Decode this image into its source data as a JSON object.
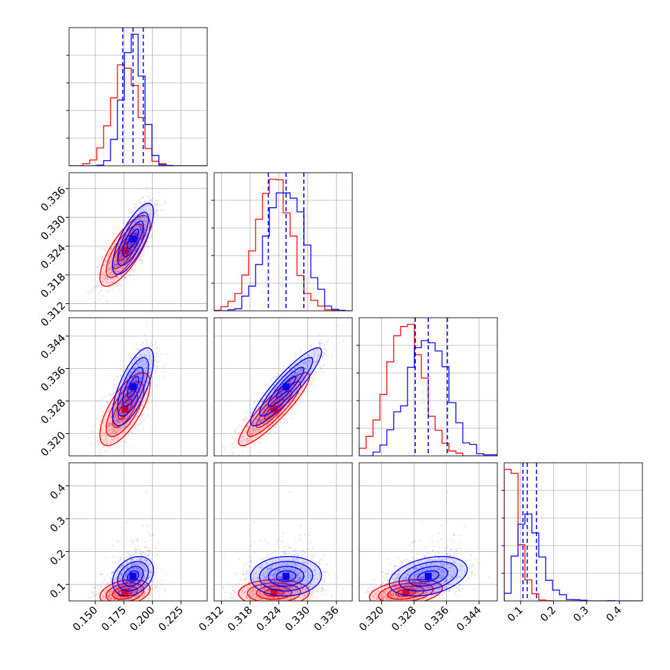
{
  "chart_data": {
    "type": "corner",
    "n_params": 4,
    "colors": {
      "a": "#0000ff",
      "b": "#ff0000",
      "grid": "#b0b0b0"
    },
    "params": [
      {
        "range": [
          0.127,
          0.248
        ],
        "ticks": [
          0.15,
          0.175,
          0.2,
          0.225
        ],
        "tick_labels": [
          "0.150",
          "0.175",
          "0.200",
          "0.225"
        ]
      },
      {
        "range": [
          0.3105,
          0.3393
        ],
        "ticks": [
          0.312,
          0.318,
          0.324,
          0.33,
          0.336
        ],
        "tick_labels": [
          "0.312",
          "0.318",
          "0.324",
          "0.330",
          "0.336"
        ]
      },
      {
        "range": [
          0.3145,
          0.3485
        ],
        "ticks": [
          0.32,
          0.328,
          0.336,
          0.344
        ],
        "tick_labels": [
          "0.320",
          "0.328",
          "0.336",
          "0.344"
        ]
      },
      {
        "range": [
          0.05,
          0.47
        ],
        "ticks": [
          0.1,
          0.2,
          0.3,
          0.4
        ],
        "tick_labels": [
          "0.1",
          "0.2",
          "0.3",
          "0.4"
        ]
      }
    ],
    "series": [
      {
        "key": "a",
        "means": [
          0.183,
          0.3255,
          0.3315,
          0.125
        ],
        "sds": [
          0.009,
          0.0037,
          0.0048,
          0.03
        ],
        "quantiles": [
          [
            0.174,
            0.183,
            0.192
          ],
          [
            0.3218,
            0.3255,
            0.3292
          ],
          [
            0.3283,
            0.3315,
            0.3362
          ],
          [
            0.107,
            0.12,
            0.148
          ]
        ]
      },
      {
        "key": "b",
        "means": [
          0.176,
          0.323,
          0.326,
          0.075
        ],
        "sds": [
          0.011,
          0.0037,
          0.0045,
          0.02
        ]
      }
    ],
    "correlations": {
      "0-1": 0.75,
      "0-2": 0.7,
      "1-2": 0.9,
      "0-3": 0.3,
      "1-3": 0.05,
      "2-3": 0.35
    },
    "grid": true
  }
}
